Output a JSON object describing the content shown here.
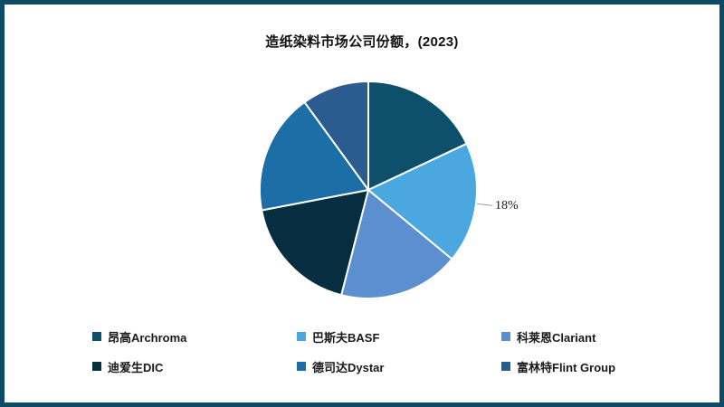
{
  "frame": {
    "border_color": "#0D4A66",
    "background_color": "#FFFFFF"
  },
  "chart_data": {
    "type": "pie",
    "title": "造纸染料市场公司份额，(2023)",
    "values_unit": "%",
    "start_angle_deg": 0,
    "direction": "clockwise",
    "legend_position": "bottom",
    "slice_border_color": "#FFFFFF",
    "series": [
      {
        "name": "昂高Archroma",
        "value": 18,
        "color": "#0E506C"
      },
      {
        "name": "巴斯夫BASF",
        "value": 18,
        "color": "#4AA7DF",
        "callout_label": "18%"
      },
      {
        "name": "科莱恩Clariant",
        "value": 18,
        "color": "#5B8FD0"
      },
      {
        "name": "迪爱生DIC",
        "value": 18,
        "color": "#062E40"
      },
      {
        "name": "德司达Dystar",
        "value": 18,
        "color": "#1C6FA6"
      },
      {
        "name": "富林特Flint Group",
        "value": 10,
        "color": "#2A5C90"
      }
    ]
  }
}
